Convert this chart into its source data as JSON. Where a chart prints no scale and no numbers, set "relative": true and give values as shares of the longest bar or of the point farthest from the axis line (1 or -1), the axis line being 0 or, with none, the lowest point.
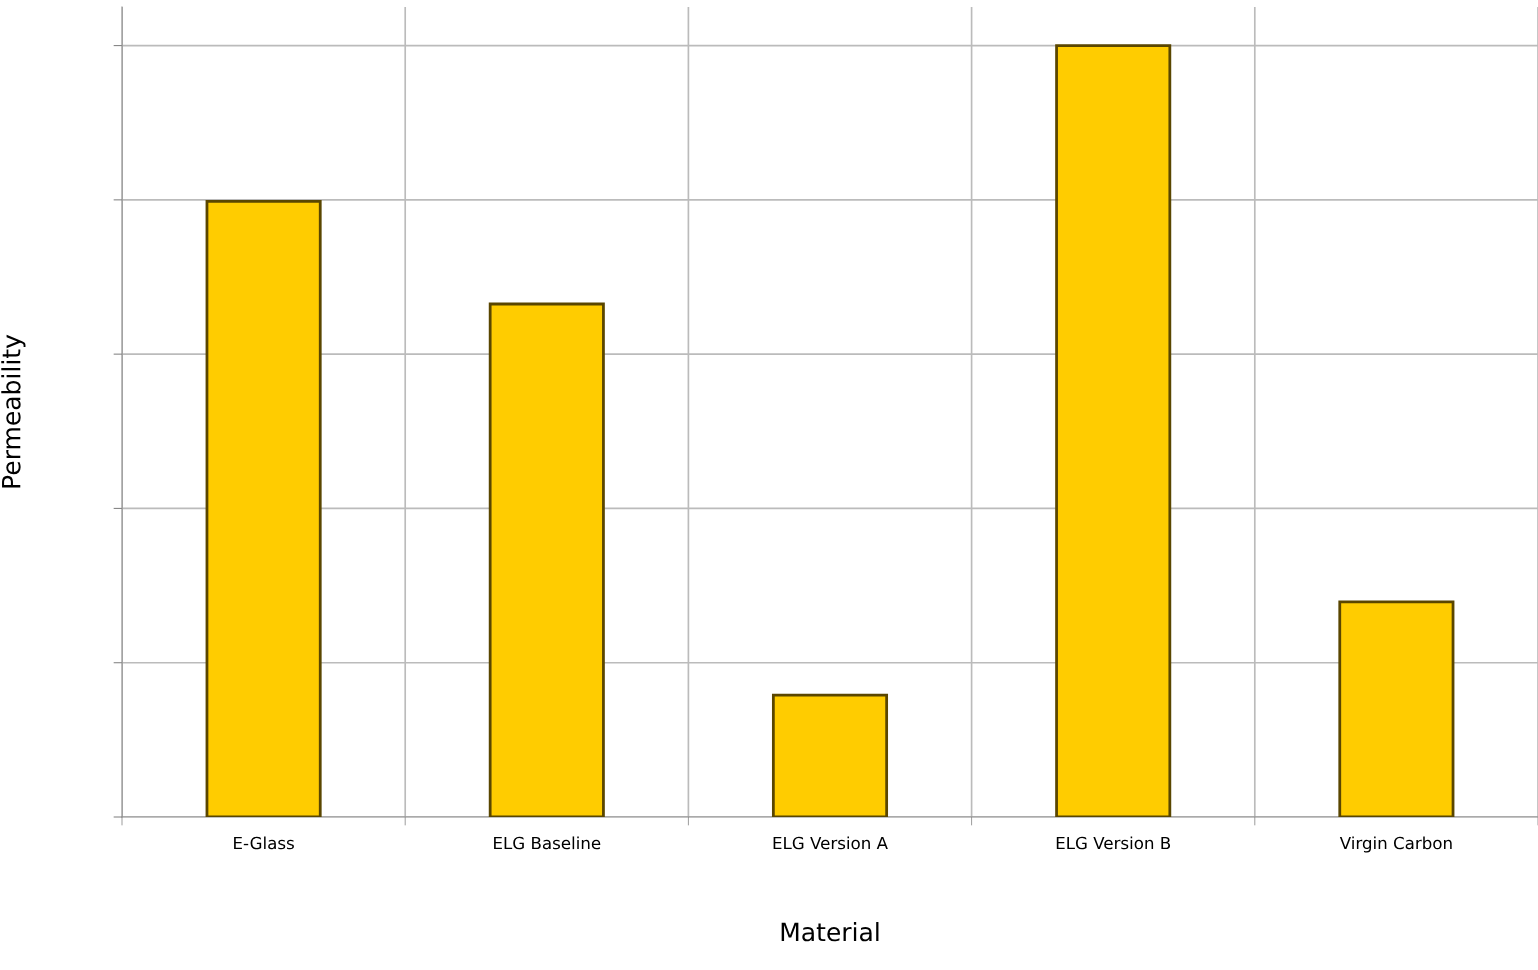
{
  "chart_data": {
    "type": "bar",
    "xlabel": "Material",
    "ylabel": "Permeability",
    "categories": [
      "E-Glass",
      "ELG Baseline",
      "ELG Version A",
      "ELG Version B",
      "Virgin Carbon"
    ],
    "values": [
      0.798,
      0.665,
      0.158,
      1,
      0.279
    ],
    "color": "#ffcc00",
    "relative": true,
    "grid": true
  }
}
